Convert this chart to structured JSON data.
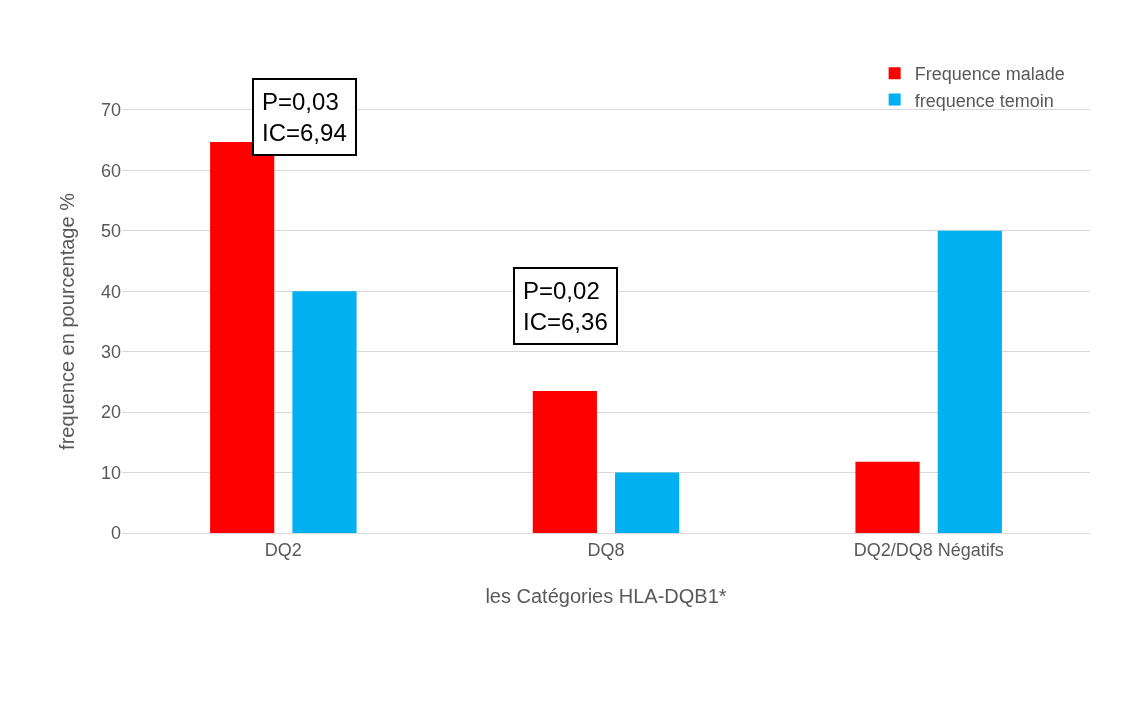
{
  "chart_data": {
    "type": "bar",
    "xlabel": "les Catégories HLA-DQB1*",
    "ylabel": "frequence en pourcentage %",
    "categories": [
      "DQ2",
      "DQ8",
      "DQ2/DQ8 Négatifs"
    ],
    "series": [
      {
        "name": "Frequence malade",
        "color": "#ff0000",
        "values": [
          64.7,
          23.5,
          11.8
        ]
      },
      {
        "name": "frequence temoin",
        "color": "#00b0f0",
        "values": [
          40,
          10,
          50
        ]
      }
    ],
    "ylim": [
      0,
      70
    ],
    "yticks": [
      0,
      10,
      20,
      30,
      40,
      50,
      60,
      70
    ],
    "grid": "y",
    "legend": "top right",
    "annotations": [
      "P=0,03\nIC=6,94",
      "P=0,02\nIC=6,36"
    ]
  }
}
